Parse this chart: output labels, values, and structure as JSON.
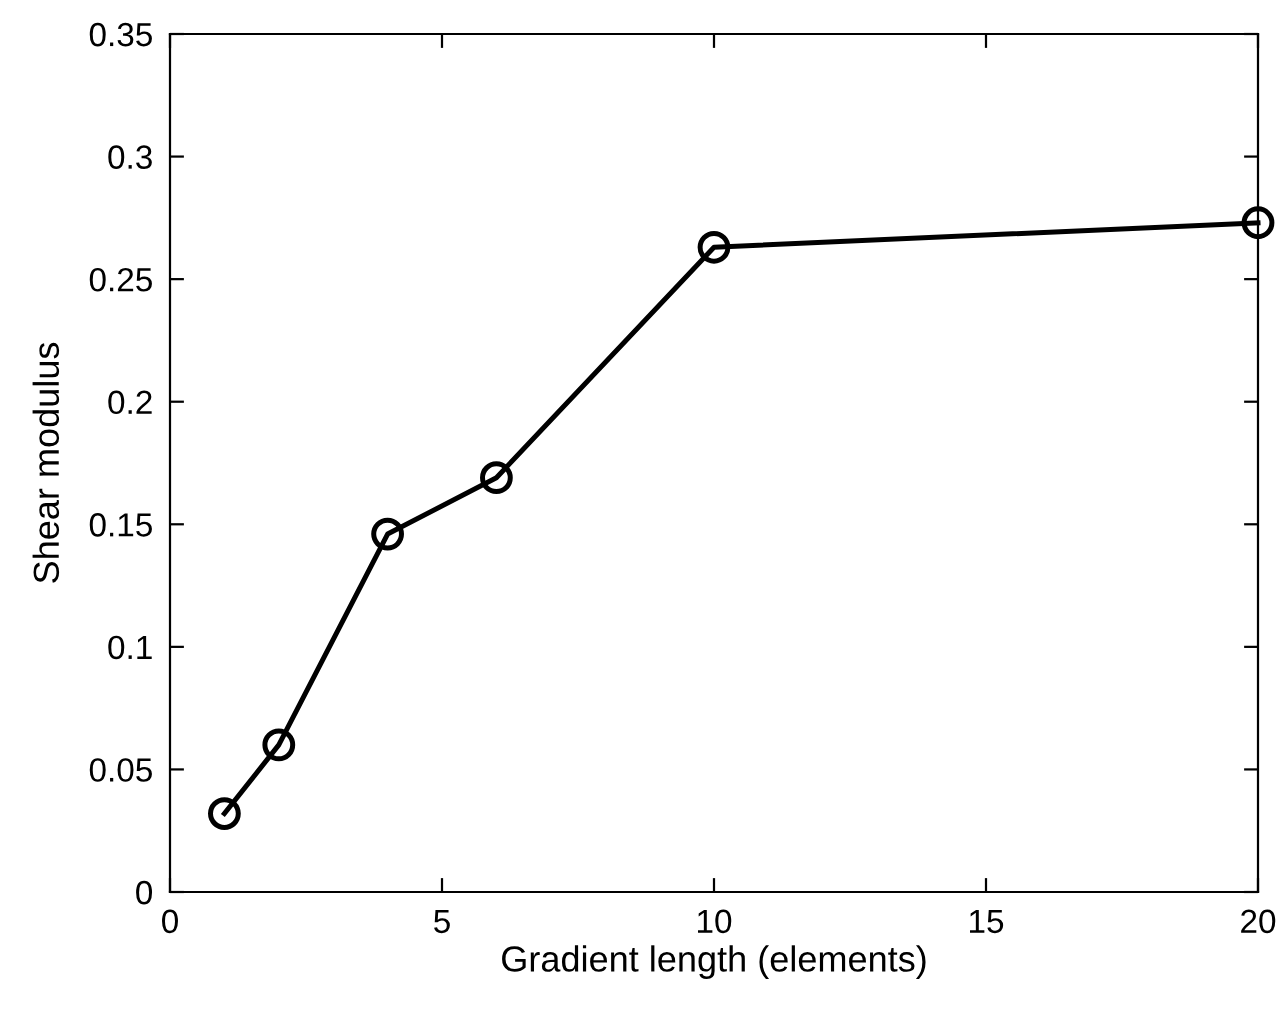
{
  "chart_data": {
    "type": "line",
    "xlabel": "Gradient length (elements)",
    "ylabel": "Shear modulus",
    "x": [
      1,
      2,
      4,
      6,
      10,
      20
    ],
    "series": [
      {
        "color": "#000000",
        "values": [
          0.032,
          0.06,
          0.146,
          0.169,
          0.263,
          0.273
        ]
      }
    ],
    "xlim": [
      0,
      20
    ],
    "xticks": [
      0,
      5,
      10,
      15,
      20
    ],
    "ylim": [
      0,
      0.35
    ],
    "yticks": [
      0,
      0.05,
      0.1,
      0.15,
      0.2,
      0.25,
      0.3,
      0.35
    ],
    "marker": "circle",
    "line_style": "solid",
    "grid": false
  }
}
